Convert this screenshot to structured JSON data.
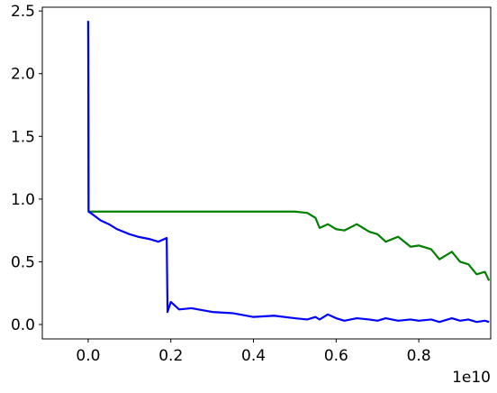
{
  "chart_data": {
    "type": "line",
    "x": [
      0,
      10000000.0,
      100000000.0,
      300000000.0,
      500000000.0,
      700000000.0,
      1000000000.0,
      1200000000.0,
      1500000000.0,
      1700000000.0,
      1900000000.0,
      1920000000.0,
      2000000000.0,
      2200000000.0,
      2500000000.0,
      3000000000.0,
      3500000000.0,
      4000000000.0,
      4500000000.0,
      5000000000.0,
      5300000000.0,
      5500000000.0,
      5600000000.0,
      5800000000.0,
      6000000000.0,
      6200000000.0,
      6500000000.0,
      6800000000.0,
      7000000000.0,
      7200000000.0,
      7500000000.0,
      7800000000.0,
      8000000000.0,
      8300000000.0,
      8500000000.0,
      8800000000.0,
      9000000000.0,
      9200000000.0,
      9400000000.0,
      9600000000.0,
      9700000000.0
    ],
    "series": [
      {
        "color": "#008000",
        "values": [
          2.42,
          0.9,
          0.9,
          0.9,
          0.9,
          0.9,
          0.9,
          0.9,
          0.9,
          0.9,
          0.9,
          0.9,
          0.9,
          0.9,
          0.9,
          0.9,
          0.9,
          0.9,
          0.9,
          0.9,
          0.89,
          0.85,
          0.77,
          0.8,
          0.76,
          0.75,
          0.8,
          0.74,
          0.72,
          0.66,
          0.7,
          0.62,
          0.63,
          0.6,
          0.52,
          0.58,
          0.5,
          0.48,
          0.4,
          0.42,
          0.35
        ]
      },
      {
        "color": "#0000ff",
        "values": [
          2.42,
          0.9,
          0.88,
          0.83,
          0.8,
          0.76,
          0.72,
          0.7,
          0.68,
          0.66,
          0.69,
          0.1,
          0.18,
          0.12,
          0.13,
          0.1,
          0.09,
          0.06,
          0.07,
          0.05,
          0.04,
          0.06,
          0.04,
          0.08,
          0.05,
          0.03,
          0.05,
          0.04,
          0.03,
          0.05,
          0.03,
          0.04,
          0.03,
          0.04,
          0.02,
          0.05,
          0.03,
          0.04,
          0.02,
          0.03,
          0.02
        ]
      }
    ],
    "xlim": [
      -1110000000.0,
      9740000000.0
    ],
    "xticks": [
      {
        "value": 0,
        "label": "0.0"
      },
      {
        "value": 2000000000.0,
        "label": "0.2"
      },
      {
        "value": 4000000000.0,
        "label": "0.4"
      },
      {
        "value": 6000000000.0,
        "label": "0.6"
      },
      {
        "value": 8000000000.0,
        "label": "0.8"
      }
    ],
    "x_offset_label": "1e10",
    "ylim": [
      -0.115,
      2.53
    ],
    "yticks": [
      {
        "value": 0,
        "label": "0.0"
      },
      {
        "value": 0.5,
        "label": "0.5"
      },
      {
        "value": 1,
        "label": "1.0"
      },
      1.5,
      {
        "value": 2,
        "label": "2.0"
      },
      2.5
    ],
    "grid": false
  }
}
